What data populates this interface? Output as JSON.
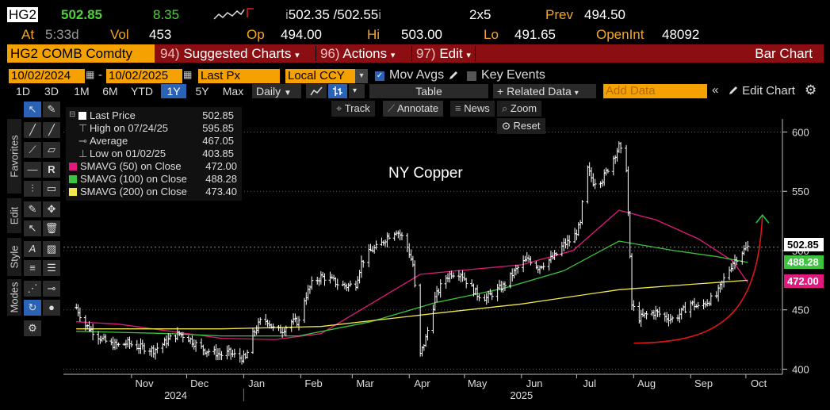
{
  "quote": {
    "ticker": "HG2",
    "last": "502.85",
    "change": "8.35",
    "bid_ask_prefix": "i",
    "bid": "502.35",
    "ask": "502.55",
    "ask_suffix": "i",
    "size": "2x5",
    "prev_label": "Prev",
    "prev": "494.50",
    "at_label": "At",
    "time": "5:33d",
    "vol_label": "Vol",
    "vol": "453",
    "op_label": "Op",
    "open": "494.00",
    "hi_label": "Hi",
    "high": "503.00",
    "lo_label": "Lo",
    "low": "491.65",
    "oi_label": "OpenInt",
    "open_interest": "48092"
  },
  "command_bar": {
    "security": "HG2 COMB Comdty",
    "menu1_num": "94)",
    "menu1": "Suggested Charts",
    "menu2_num": "96)",
    "menu2": "Actions",
    "menu3_num": "97)",
    "menu3": "Edit",
    "chart_type": "Bar Chart"
  },
  "range": {
    "start": "10/02/2024",
    "dash": "-",
    "end": "10/02/2025",
    "price_field": "Last Px",
    "currency": "Local CCY",
    "mov_avgs_label": "Mov Avgs",
    "mov_avgs_checked": true,
    "key_events_label": "Key Events",
    "key_events_checked": false
  },
  "toolbar": {
    "periods": [
      "1D",
      "3D",
      "1M",
      "6M",
      "YTD",
      "1Y",
      "5Y",
      "Max"
    ],
    "selected_period": "1Y",
    "frequency": "Daily",
    "table": "Table",
    "related_data": "Related Data",
    "add_data_placeholder": "Add Data",
    "edit_chart": "Edit Chart"
  },
  "side_tabs": {
    "favorites": "Favorites",
    "edit": "Edit",
    "style": "Style",
    "modes": "Modes"
  },
  "chart_controls": {
    "track": "Track",
    "annotate": "Annotate",
    "news": "News",
    "zoom": "Zoom",
    "reset": "Reset"
  },
  "legend": [
    {
      "label": "Last Price",
      "value": "502.85",
      "color": "#ffffff"
    },
    {
      "label": "High on 07/24/25",
      "value": "595.85",
      "color": ""
    },
    {
      "label": "Average",
      "value": "467.05",
      "color": ""
    },
    {
      "label": "Low on 01/02/25",
      "value": "403.85",
      "color": ""
    },
    {
      "label": "SMAVG (50)  on Close",
      "value": "472.00",
      "color": "#e0197d"
    },
    {
      "label": "SMAVG (100)  on Close",
      "value": "488.28",
      "color": "#3cc43c"
    },
    {
      "label": "SMAVG (200)  on Close",
      "value": "473.40",
      "color": "#f2e84b"
    }
  ],
  "chart_data": {
    "type": "bar",
    "title": "NY Copper",
    "y_ticks": [
      "600",
      "550",
      "500",
      "450",
      "400"
    ],
    "ylim": [
      397,
      611
    ],
    "month_ticks": [
      "Nov",
      "Dec",
      "Jan",
      "Feb",
      "Mar",
      "Apr",
      "May",
      "Jun",
      "Jul",
      "Aug",
      "Sep",
      "Oct"
    ],
    "year_labels": [
      "2024",
      "2025"
    ],
    "last_price_tag": "502.85",
    "sma100_tag": "488.28",
    "sma50_tag": "472.00",
    "price_path": [
      {
        "x": "2024-10-02",
        "y": 452
      },
      {
        "x": "2024-10-07",
        "y": 437
      },
      {
        "x": "2024-10-11",
        "y": 432
      },
      {
        "x": "2024-10-16",
        "y": 425
      },
      {
        "x": "2024-10-21",
        "y": 421
      },
      {
        "x": "2024-10-25",
        "y": 420
      },
      {
        "x": "2024-10-30",
        "y": 422
      },
      {
        "x": "2024-11-04",
        "y": 419
      },
      {
        "x": "2024-11-08",
        "y": 418
      },
      {
        "x": "2024-11-13",
        "y": 416
      },
      {
        "x": "2024-11-18",
        "y": 421
      },
      {
        "x": "2024-11-22",
        "y": 426
      },
      {
        "x": "2024-11-27",
        "y": 430
      },
      {
        "x": "2024-12-02",
        "y": 426
      },
      {
        "x": "2024-12-06",
        "y": 421
      },
      {
        "x": "2024-12-11",
        "y": 416
      },
      {
        "x": "2024-12-16",
        "y": 414
      },
      {
        "x": "2024-12-20",
        "y": 412
      },
      {
        "x": "2024-12-24",
        "y": 414
      },
      {
        "x": "2024-12-29",
        "y": 410
      },
      {
        "x": "2025-01-02",
        "y": 409
      },
      {
        "x": "2025-01-06",
        "y": 429
      },
      {
        "x": "2025-01-10",
        "y": 440
      },
      {
        "x": "2025-01-14",
        "y": 441
      },
      {
        "x": "2025-01-18",
        "y": 432
      },
      {
        "x": "2025-01-22",
        "y": 433
      },
      {
        "x": "2025-01-27",
        "y": 440
      },
      {
        "x": "2025-01-31",
        "y": 440
      },
      {
        "x": "2025-02-03",
        "y": 459
      },
      {
        "x": "2025-02-07",
        "y": 472
      },
      {
        "x": "2025-02-12",
        "y": 478
      },
      {
        "x": "2025-02-17",
        "y": 476
      },
      {
        "x": "2025-02-21",
        "y": 472
      },
      {
        "x": "2025-02-26",
        "y": 470
      },
      {
        "x": "2025-03-03",
        "y": 472
      },
      {
        "x": "2025-03-06",
        "y": 490
      },
      {
        "x": "2025-03-11",
        "y": 500
      },
      {
        "x": "2025-03-16",
        "y": 504
      },
      {
        "x": "2025-03-20",
        "y": 512
      },
      {
        "x": "2025-03-25",
        "y": 517
      },
      {
        "x": "2025-03-30",
        "y": 508
      },
      {
        "x": "2025-04-03",
        "y": 488
      },
      {
        "x": "2025-04-07",
        "y": 412
      },
      {
        "x": "2025-04-10",
        "y": 426
      },
      {
        "x": "2025-04-15",
        "y": 460
      },
      {
        "x": "2025-04-20",
        "y": 476
      },
      {
        "x": "2025-04-24",
        "y": 481
      },
      {
        "x": "2025-04-29",
        "y": 481
      },
      {
        "x": "2025-05-04",
        "y": 470
      },
      {
        "x": "2025-05-08",
        "y": 463
      },
      {
        "x": "2025-05-13",
        "y": 460
      },
      {
        "x": "2025-05-18",
        "y": 466
      },
      {
        "x": "2025-05-22",
        "y": 470
      },
      {
        "x": "2025-05-27",
        "y": 480
      },
      {
        "x": "2025-06-01",
        "y": 489
      },
      {
        "x": "2025-06-05",
        "y": 493
      },
      {
        "x": "2025-06-10",
        "y": 486
      },
      {
        "x": "2025-06-15",
        "y": 491
      },
      {
        "x": "2025-06-19",
        "y": 495
      },
      {
        "x": "2025-06-24",
        "y": 505
      },
      {
        "x": "2025-06-29",
        "y": 510
      },
      {
        "x": "2025-07-03",
        "y": 522
      },
      {
        "x": "2025-07-06",
        "y": 572
      },
      {
        "x": "2025-07-10",
        "y": 558
      },
      {
        "x": "2025-07-15",
        "y": 560
      },
      {
        "x": "2025-07-19",
        "y": 572
      },
      {
        "x": "2025-07-24",
        "y": 588
      },
      {
        "x": "2025-07-28",
        "y": 570
      },
      {
        "x": "2025-07-31",
        "y": 454
      },
      {
        "x": "2025-08-04",
        "y": 443
      },
      {
        "x": "2025-08-08",
        "y": 446
      },
      {
        "x": "2025-08-13",
        "y": 448
      },
      {
        "x": "2025-08-18",
        "y": 444
      },
      {
        "x": "2025-08-23",
        "y": 442
      },
      {
        "x": "2025-08-27",
        "y": 448
      },
      {
        "x": "2025-09-01",
        "y": 456
      },
      {
        "x": "2025-09-05",
        "y": 452
      },
      {
        "x": "2025-09-10",
        "y": 457
      },
      {
        "x": "2025-09-15",
        "y": 462
      },
      {
        "x": "2025-09-19",
        "y": 476
      },
      {
        "x": "2025-09-24",
        "y": 490
      },
      {
        "x": "2025-09-28",
        "y": 498
      },
      {
        "x": "2025-10-02",
        "y": 503
      }
    ],
    "series": [
      {
        "name": "SMAVG (50)",
        "color": "#e0197d",
        "values": [
          {
            "x": "2024-10-02",
            "y": 440
          },
          {
            "x": "2024-10-25",
            "y": 438
          },
          {
            "x": "2024-11-22",
            "y": 432
          },
          {
            "x": "2024-12-20",
            "y": 426
          },
          {
            "x": "2025-01-18",
            "y": 425
          },
          {
            "x": "2025-02-12",
            "y": 430
          },
          {
            "x": "2025-03-11",
            "y": 455
          },
          {
            "x": "2025-04-07",
            "y": 480
          },
          {
            "x": "2025-05-04",
            "y": 484
          },
          {
            "x": "2025-06-01",
            "y": 488
          },
          {
            "x": "2025-06-29",
            "y": 500
          },
          {
            "x": "2025-07-24",
            "y": 534
          },
          {
            "x": "2025-08-13",
            "y": 526
          },
          {
            "x": "2025-09-05",
            "y": 510
          },
          {
            "x": "2025-09-24",
            "y": 491
          },
          {
            "x": "2025-10-02",
            "y": 473
          }
        ]
      },
      {
        "name": "SMAVG (100)",
        "color": "#3cc43c",
        "values": [
          {
            "x": "2024-10-02",
            "y": 432
          },
          {
            "x": "2024-11-22",
            "y": 430
          },
          {
            "x": "2024-12-20",
            "y": 428
          },
          {
            "x": "2025-01-31",
            "y": 428
          },
          {
            "x": "2025-03-11",
            "y": 440
          },
          {
            "x": "2025-04-15",
            "y": 456
          },
          {
            "x": "2025-05-22",
            "y": 468
          },
          {
            "x": "2025-06-24",
            "y": 483
          },
          {
            "x": "2025-07-24",
            "y": 508
          },
          {
            "x": "2025-08-23",
            "y": 500
          },
          {
            "x": "2025-09-15",
            "y": 495
          },
          {
            "x": "2025-10-02",
            "y": 490
          }
        ]
      },
      {
        "name": "SMAVG (200)",
        "color": "#f2e84b",
        "values": [
          {
            "x": "2024-10-02",
            "y": 434
          },
          {
            "x": "2024-12-20",
            "y": 434
          },
          {
            "x": "2025-02-12",
            "y": 436
          },
          {
            "x": "2025-04-15",
            "y": 447
          },
          {
            "x": "2025-06-01",
            "y": 455
          },
          {
            "x": "2025-07-24",
            "y": 467
          },
          {
            "x": "2025-09-05",
            "y": 472
          },
          {
            "x": "2025-10-02",
            "y": 475
          }
        ]
      }
    ],
    "annotation_arrow": [
      {
        "x": "2025-08-01",
        "y": 422
      },
      {
        "x": "2025-09-20",
        "y": 450
      },
      {
        "x": "2025-10-10",
        "y": 530
      }
    ]
  }
}
